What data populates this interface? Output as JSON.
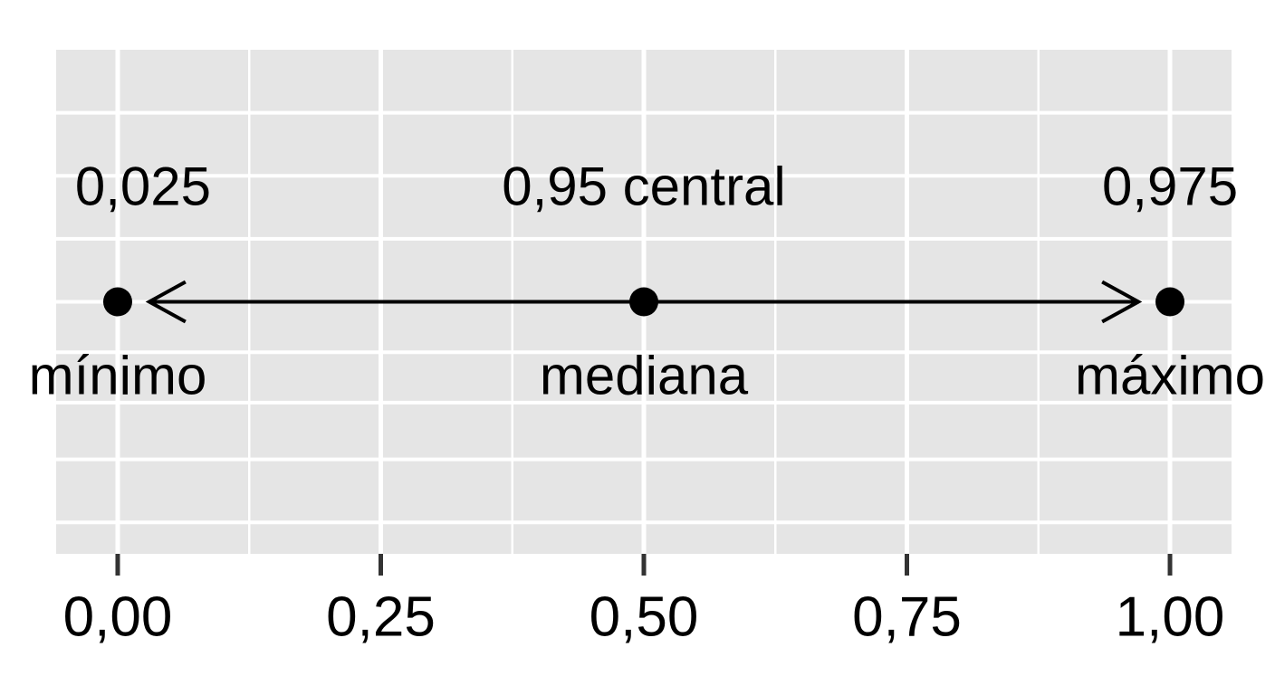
{
  "chart_data": {
    "type": "scatter",
    "x": [
      0,
      0.5,
      1
    ],
    "y": [
      0,
      0,
      0
    ],
    "labels_below": [
      "mínimo",
      "mediana",
      "máximo"
    ],
    "labels_above": [
      "0,025",
      "0,95 central",
      "0,975"
    ],
    "arrow": {
      "from": 0.03,
      "to": 0.97
    },
    "color": "#000000",
    "xlim": [
      -0.0585,
      1.0585
    ],
    "xticks": [
      {
        "value": 0,
        "label": "0,00"
      },
      {
        "value": 0.25,
        "label": "0,25"
      },
      {
        "value": 0.5,
        "label": "0,50"
      },
      {
        "value": 0.75,
        "label": "0,75"
      },
      {
        "value": 1,
        "label": "1,00"
      }
    ],
    "xminor": [
      0.125,
      0.375,
      0.625,
      0.875
    ],
    "ylim": [
      -1,
      1
    ],
    "yticks": [
      -0.875,
      -0.625,
      -0.4,
      -0.2,
      0,
      0.25,
      0.5,
      0.75
    ],
    "grid": true
  }
}
